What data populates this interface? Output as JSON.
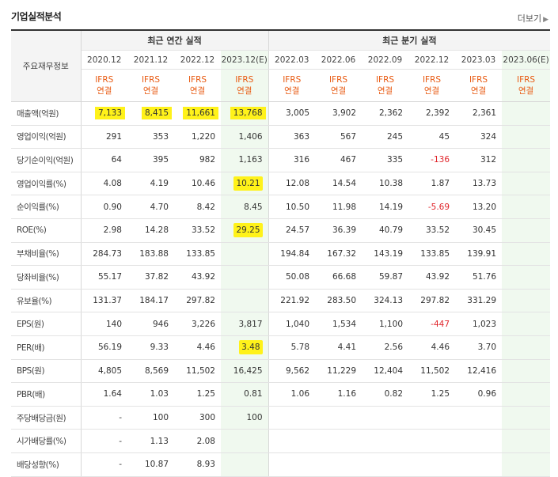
{
  "title": "기업실적분석",
  "more_label": "더보기",
  "header": {
    "corner": "주요재무정보",
    "annual_group": "최근 연간 실적",
    "quarter_group": "최근 분기 실적",
    "periods": [
      "2020.12",
      "2021.12",
      "2022.12",
      "2023.12(E)",
      "2022.03",
      "2022.06",
      "2022.09",
      "2022.12",
      "2023.03",
      "2023.06(E)"
    ],
    "ifrs_line1": "IFRS",
    "ifrs_line2": "연결"
  },
  "rows": [
    {
      "label": "매출액(억원)",
      "values": [
        "7,133",
        "8,415",
        "11,661",
        "13,768",
        "3,005",
        "3,902",
        "2,362",
        "2,392",
        "2,361",
        ""
      ]
    },
    {
      "label": "영업이익(억원)",
      "values": [
        "291",
        "353",
        "1,220",
        "1,406",
        "363",
        "567",
        "245",
        "45",
        "324",
        ""
      ]
    },
    {
      "label": "당기순이익(억원)",
      "values": [
        "64",
        "395",
        "982",
        "1,163",
        "316",
        "467",
        "335",
        "-136",
        "312",
        ""
      ]
    },
    {
      "label": "영업이익률(%)",
      "values": [
        "4.08",
        "4.19",
        "10.46",
        "10.21",
        "12.08",
        "14.54",
        "10.38",
        "1.87",
        "13.73",
        ""
      ]
    },
    {
      "label": "순이익률(%)",
      "values": [
        "0.90",
        "4.70",
        "8.42",
        "8.45",
        "10.50",
        "11.98",
        "14.19",
        "-5.69",
        "13.20",
        ""
      ]
    },
    {
      "label": "ROE(%)",
      "values": [
        "2.98",
        "14.28",
        "33.52",
        "29.25",
        "24.57",
        "36.39",
        "40.79",
        "33.52",
        "30.45",
        ""
      ]
    },
    {
      "label": "부채비율(%)",
      "values": [
        "284.73",
        "183.88",
        "133.85",
        "",
        "194.84",
        "167.32",
        "143.19",
        "133.85",
        "139.91",
        ""
      ]
    },
    {
      "label": "당좌비율(%)",
      "values": [
        "55.17",
        "37.82",
        "43.92",
        "",
        "50.08",
        "66.68",
        "59.87",
        "43.92",
        "51.76",
        ""
      ]
    },
    {
      "label": "유보율(%)",
      "values": [
        "131.37",
        "184.17",
        "297.82",
        "",
        "221.92",
        "283.50",
        "324.13",
        "297.82",
        "331.29",
        ""
      ]
    },
    {
      "label": "EPS(원)",
      "values": [
        "140",
        "946",
        "3,226",
        "3,817",
        "1,040",
        "1,534",
        "1,100",
        "-447",
        "1,023",
        ""
      ]
    },
    {
      "label": "PER(배)",
      "values": [
        "56.19",
        "9.33",
        "4.46",
        "3.48",
        "5.78",
        "4.41",
        "2.56",
        "4.46",
        "3.70",
        ""
      ]
    },
    {
      "label": "BPS(원)",
      "values": [
        "4,805",
        "8,569",
        "11,502",
        "16,425",
        "9,562",
        "11,229",
        "12,404",
        "11,502",
        "12,416",
        ""
      ]
    },
    {
      "label": "PBR(배)",
      "values": [
        "1.64",
        "1.03",
        "1.25",
        "0.81",
        "1.06",
        "1.16",
        "0.82",
        "1.25",
        "0.96",
        ""
      ]
    },
    {
      "label": "주당배당금(원)",
      "values": [
        "-",
        "100",
        "300",
        "100",
        "",
        "",
        "",
        "",
        "",
        ""
      ]
    },
    {
      "label": "시가배당률(%)",
      "values": [
        "-",
        "1.13",
        "2.08",
        "",
        "",
        "",
        "",
        "",
        "",
        ""
      ]
    },
    {
      "label": "배당성향(%)",
      "values": [
        "-",
        "10.87",
        "8.93",
        "",
        "",
        "",
        "",
        "",
        "",
        ""
      ]
    }
  ],
  "colors": {
    "ifrs": "#e85a12",
    "negative": "#e0242a",
    "highlight": "#fff21a",
    "estimate_bg": "#f0f9ef"
  }
}
